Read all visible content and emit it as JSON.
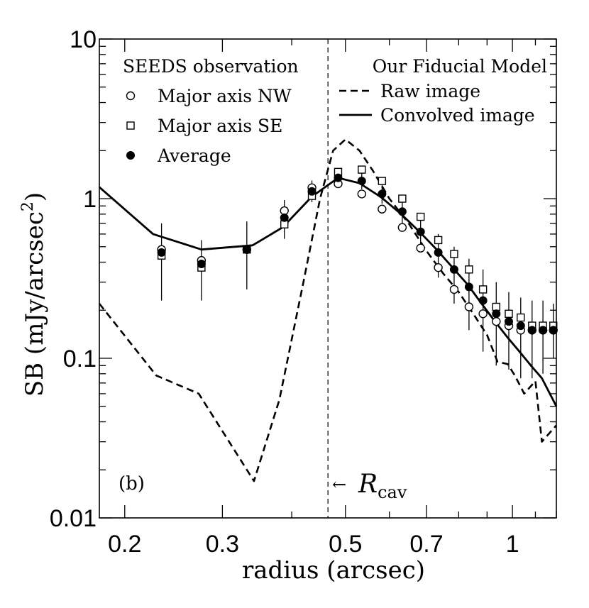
{
  "chart_data": {
    "type": "scatter",
    "panel_label": "(b)",
    "xlabel": "radius (arcsec)",
    "ylabel": "SB (mJy/arcsec",
    "ylabel_sup": "2",
    "ylabel_close": ")",
    "xscale": "log",
    "yscale": "log",
    "xlim": [
      0.18,
      1.2
    ],
    "ylim": [
      0.01,
      10
    ],
    "x_ticks": [
      {
        "value": 0.2,
        "label": "0.2"
      },
      {
        "value": 0.3,
        "label": "0.3"
      },
      {
        "value": 0.5,
        "label": "0.5"
      },
      {
        "value": 0.7,
        "label": "0.7"
      },
      {
        "value": 1.0,
        "label": "1"
      }
    ],
    "y_ticks": [
      {
        "value": 10,
        "label": "10"
      },
      {
        "value": 1,
        "label": "1"
      },
      {
        "value": 0.1,
        "label": "0.1"
      },
      {
        "value": 0.01,
        "label": "0.01"
      }
    ],
    "legend": {
      "observation_title": "SEEDS observation",
      "model_title": "Our Fiducial Model",
      "entries": [
        {
          "key": "nw",
          "label": "Major axis NW",
          "marker": "open-circle"
        },
        {
          "key": "se",
          "label": "Major axis SE",
          "marker": "open-square"
        },
        {
          "key": "avg",
          "label": "Average",
          "marker": "filled-circle"
        },
        {
          "key": "raw",
          "label": "Raw image",
          "line": "dashed"
        },
        {
          "key": "conv",
          "label": "Convolved image",
          "line": "solid"
        }
      ]
    },
    "cavity": {
      "x": 0.465,
      "label": "R",
      "label_sub": "cav",
      "arrow": "←"
    },
    "series": [
      {
        "name": "Major axis NW",
        "marker": "open-circle",
        "x": [
          0.233,
          0.275,
          0.332,
          0.388,
          0.435,
          0.485,
          0.535,
          0.582,
          0.633,
          0.683,
          0.735,
          0.785,
          0.835,
          0.885,
          0.935,
          0.985,
          1.035,
          1.085,
          1.135,
          1.185
        ],
        "y": [
          0.48,
          0.41,
          0.48,
          0.84,
          1.17,
          1.24,
          1.07,
          0.86,
          0.66,
          0.49,
          0.37,
          0.27,
          0.21,
          0.19,
          0.17,
          0.16,
          0.15,
          0.15,
          0.15,
          0.15
        ]
      },
      {
        "name": "Major axis SE",
        "marker": "open-square",
        "x": [
          0.233,
          0.275,
          0.332,
          0.388,
          0.435,
          0.485,
          0.535,
          0.582,
          0.633,
          0.683,
          0.735,
          0.785,
          0.835,
          0.885,
          0.935,
          0.985,
          1.035,
          1.085,
          1.135,
          1.185
        ],
        "y": [
          0.44,
          0.37,
          0.48,
          0.69,
          1.04,
          1.47,
          1.52,
          1.29,
          1.0,
          0.77,
          0.55,
          0.45,
          0.36,
          0.27,
          0.21,
          0.19,
          0.18,
          0.16,
          0.16,
          0.16
        ]
      },
      {
        "name": "Average",
        "marker": "filled-circle",
        "x": [
          0.233,
          0.275,
          0.332,
          0.388,
          0.435,
          0.485,
          0.535,
          0.582,
          0.633,
          0.683,
          0.735,
          0.785,
          0.835,
          0.885,
          0.935,
          0.985,
          1.035,
          1.085,
          1.135,
          1.185
        ],
        "y": [
          0.46,
          0.39,
          0.48,
          0.76,
          1.11,
          1.35,
          1.29,
          1.07,
          0.83,
          0.62,
          0.46,
          0.36,
          0.28,
          0.23,
          0.19,
          0.17,
          0.16,
          0.15,
          0.15,
          0.15
        ],
        "err_low": [
          0.23,
          0.23,
          0.27,
          0.56,
          0.95,
          1.22,
          1.15,
          0.93,
          0.68,
          0.48,
          0.32,
          0.22,
          0.15,
          0.11,
          0.09,
          0.085,
          0.075,
          0.075,
          0.08,
          0.1
        ],
        "err_high": [
          0.7,
          0.55,
          0.72,
          0.98,
          1.3,
          1.5,
          1.44,
          1.22,
          0.98,
          0.77,
          0.6,
          0.5,
          0.42,
          0.36,
          0.3,
          0.26,
          0.24,
          0.23,
          0.23,
          0.22
        ]
      },
      {
        "name": "Raw image",
        "line": "dashed",
        "x": [
          0.18,
          0.228,
          0.272,
          0.342,
          0.38,
          0.42,
          0.45,
          0.475,
          0.5,
          0.53,
          0.56,
          0.6,
          0.65,
          0.7,
          0.75,
          0.8,
          0.85,
          0.9,
          0.94,
          0.98,
          1.01,
          1.05,
          1.1,
          1.13,
          1.2
        ],
        "y": [
          0.22,
          0.078,
          0.06,
          0.017,
          0.055,
          0.3,
          1.0,
          2.0,
          2.35,
          2.0,
          1.5,
          1.0,
          0.7,
          0.47,
          0.34,
          0.26,
          0.19,
          0.14,
          0.095,
          0.092,
          0.078,
          0.06,
          0.072,
          0.03,
          0.038
        ]
      },
      {
        "name": "Convolved image",
        "line": "solid",
        "x": [
          0.18,
          0.225,
          0.275,
          0.34,
          0.385,
          0.435,
          0.485,
          0.53,
          0.58,
          0.63,
          0.68,
          0.73,
          0.78,
          0.83,
          0.88,
          0.93,
          0.98,
          1.03,
          1.08,
          1.13,
          1.2
        ],
        "y": [
          1.18,
          0.6,
          0.48,
          0.51,
          0.66,
          1.03,
          1.35,
          1.25,
          1.02,
          0.8,
          0.62,
          0.48,
          0.37,
          0.29,
          0.22,
          0.17,
          0.135,
          0.11,
          0.09,
          0.075,
          0.05
        ]
      }
    ]
  }
}
